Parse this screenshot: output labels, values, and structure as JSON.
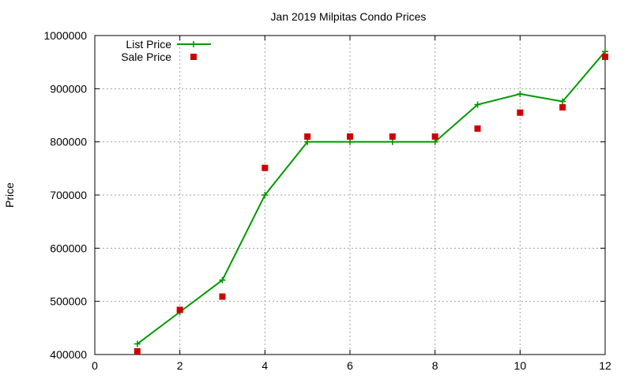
{
  "chart_data": {
    "type": "line",
    "title": "Jan 2019 Milpitas Condo Prices",
    "xlabel": "",
    "ylabel": "Price",
    "xlim": [
      0,
      12
    ],
    "ylim": [
      400000,
      1000000
    ],
    "xticks": [
      0,
      2,
      4,
      6,
      8,
      10,
      12
    ],
    "yticks": [
      400000,
      500000,
      600000,
      700000,
      800000,
      900000,
      1000000
    ],
    "grid": true,
    "legend_position": "top-left",
    "series": [
      {
        "name": "List Price",
        "style": "line-points",
        "marker": "plus",
        "color": "#009900",
        "x": [
          1,
          2,
          3,
          4,
          5,
          6,
          7,
          8,
          9,
          10,
          11,
          12
        ],
        "y": [
          420000,
          480000,
          540000,
          700000,
          800000,
          800000,
          800000,
          800000,
          870000,
          890000,
          876000,
          970000
        ]
      },
      {
        "name": "Sale Price",
        "style": "points",
        "marker": "square",
        "color": "#cc0000",
        "x": [
          1,
          2,
          3,
          4,
          5,
          6,
          7,
          8,
          9,
          10,
          11,
          12
        ],
        "y": [
          406000,
          484000,
          509000,
          751000,
          810000,
          810000,
          810000,
          810000,
          825000,
          855000,
          865000,
          960000
        ]
      }
    ]
  }
}
